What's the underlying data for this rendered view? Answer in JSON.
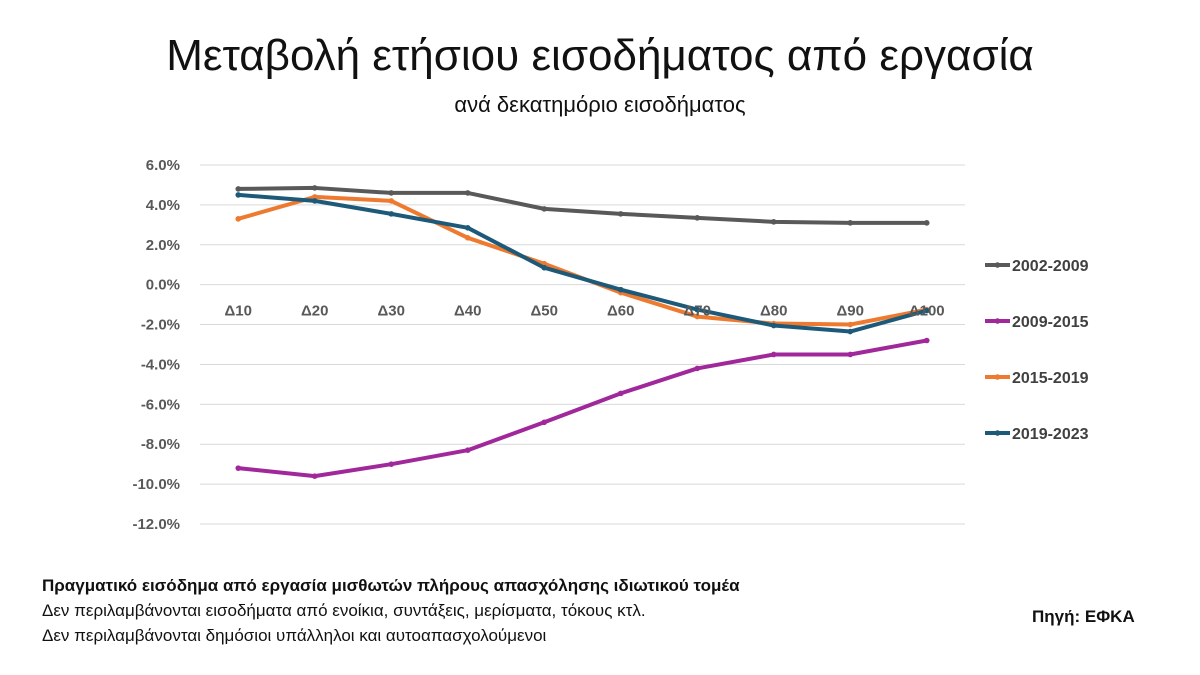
{
  "title": "Μεταβολή ετήσιου εισοδήματος από εργασία",
  "subtitle": "ανά δεκατημόριο εισοδήματος",
  "notes": {
    "line1": "Πραγματικό εισόδημα από εργασία μισθωτών πλήρους απασχόλησης ιδιωτικού τομέα",
    "line2": "Δεν περιλαμβάνονται εισοδήματα από ενοίκια, συντάξεις, μερίσματα, τόκους κτλ.",
    "line3": "Δεν περιλαμβάνονται δημόσιοι υπάλληλοι και αυτοαπασχολούμενοι"
  },
  "source": "Πηγή: ΕΦΚΑ",
  "chart_data": {
    "type": "line",
    "categories": [
      "Δ10",
      "Δ20",
      "Δ30",
      "Δ40",
      "Δ50",
      "Δ60",
      "Δ70",
      "Δ80",
      "Δ90",
      "Δ100"
    ],
    "ylim": [
      -12,
      6
    ],
    "yticks": [
      6,
      4,
      2,
      0,
      -2,
      -4,
      -6,
      -8,
      -10,
      -12
    ],
    "ytick_labels": [
      "6.0%",
      "4.0%",
      "2.0%",
      "0.0%",
      "-2.0%",
      "-4.0%",
      "-6.0%",
      "-8.0%",
      "-10.0%",
      "-12.0%"
    ],
    "grid": true,
    "legend_position": "right",
    "series": [
      {
        "name": "2002-2009",
        "color": "#595959",
        "values": [
          4.8,
          4.85,
          4.6,
          4.6,
          3.8,
          3.55,
          3.35,
          3.15,
          3.1,
          3.1
        ]
      },
      {
        "name": "2009-2015",
        "color": "#A0289A",
        "values": [
          -9.2,
          -9.6,
          -9.0,
          -8.3,
          -6.9,
          -5.45,
          -4.2,
          -3.5,
          -3.5,
          -2.8
        ]
      },
      {
        "name": "2015-2019",
        "color": "#EE7A30",
        "values": [
          3.3,
          4.4,
          4.2,
          2.35,
          1.05,
          -0.4,
          -1.6,
          -1.95,
          -2.0,
          -1.25
        ]
      },
      {
        "name": "2019-2023",
        "color": "#1D5A7A",
        "values": [
          4.5,
          4.2,
          3.55,
          2.85,
          0.85,
          -0.25,
          -1.25,
          -2.05,
          -2.35,
          -1.3
        ]
      }
    ]
  }
}
